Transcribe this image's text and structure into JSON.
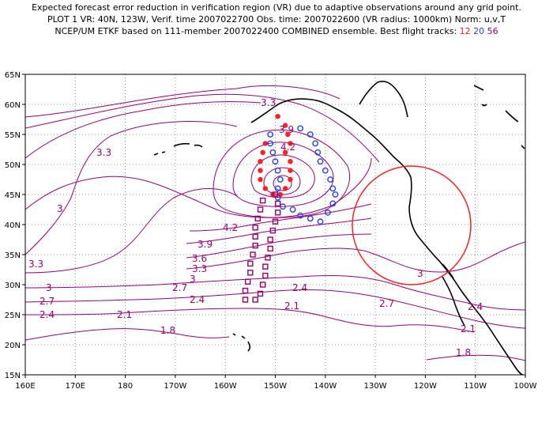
{
  "title": {
    "line1": "Expected forecast error reduction in verification region (VR) due to adaptive observations around any grid point.",
    "line2": "PLOT 1 VR: 40N, 123W, Verif. time 2007022700 Obs. time: 2007022600 (VR radius: 1000km) Norm: u,v,T",
    "line3_prefix": "NCEP/UM ETKF based on 111-member 2007022400 COMBINED ensemble.  Best flight tracks:",
    "track_12": "12",
    "track_20": "20",
    "track_56": "56"
  },
  "colors": {
    "contour": "#99007a",
    "track_12": "#ff2020",
    "track_20": "#2040ff",
    "track_56": "#990066",
    "verification_circle": "#ff2020"
  },
  "axes": {
    "x_ticks": [
      "160E",
      "170E",
      "180",
      "170W",
      "160W",
      "150W",
      "140W",
      "130W",
      "120W",
      "110W",
      "100W"
    ],
    "y_ticks": [
      "65N",
      "60N",
      "55N",
      "50N",
      "45N",
      "40N",
      "35N",
      "30N",
      "25N",
      "20N",
      "15N"
    ],
    "lon_range": [
      160,
      260
    ],
    "lat_range": [
      15,
      65
    ]
  },
  "contour_labels": [
    "3.3",
    "3.9",
    "4.2",
    "3.3",
    "3",
    "4.2",
    "3.9",
    "3.6",
    "3.3",
    "3",
    "3.3",
    "2.7",
    "2.4",
    "3",
    "2.7",
    "2.4",
    "2.1",
    "1.8",
    "2.4",
    "2.1",
    "2.7",
    "3",
    "2.4",
    "2.1",
    "1.8"
  ],
  "verification_region": {
    "lat": 40,
    "lon": -123,
    "radius_km": 1000
  },
  "flight_tracks": {
    "track_12": [
      [
        -149.5,
        58
      ],
      [
        -148,
        56.5
      ],
      [
        -147.5,
        55
      ],
      [
        -147,
        53.5
      ],
      [
        -148,
        52
      ],
      [
        -147,
        50.5
      ],
      [
        -147,
        49
      ],
      [
        -147,
        47.5
      ],
      [
        -148,
        46
      ],
      [
        -149,
        45
      ],
      [
        -150.5,
        45
      ],
      [
        -152,
        46
      ],
      [
        -153,
        47.5
      ],
      [
        -153,
        49
      ],
      [
        -153,
        50.5
      ],
      [
        -152.5,
        52
      ],
      [
        -152,
        53.5
      ]
    ],
    "track_20": [
      [
        -145,
        56
      ],
      [
        -143,
        55
      ],
      [
        -142,
        53.5
      ],
      [
        -141.5,
        52
      ],
      [
        -141,
        50.5
      ],
      [
        -140,
        49
      ],
      [
        -139,
        47.5
      ],
      [
        -138.5,
        46
      ],
      [
        -138,
        45
      ],
      [
        -138.5,
        43.5
      ],
      [
        -139.5,
        42
      ],
      [
        -141,
        40.5
      ],
      [
        -143,
        41
      ],
      [
        -145,
        41.5
      ],
      [
        -146.5,
        42.5
      ],
      [
        -148.5,
        43
      ],
      [
        -149.5,
        44.5
      ],
      [
        -149.5,
        46
      ],
      [
        -149,
        47.5
      ],
      [
        -149.5,
        49
      ],
      [
        -150,
        50.5
      ],
      [
        -150.5,
        52
      ],
      [
        -151,
        53.5
      ],
      [
        -151,
        55
      ]
    ],
    "track_56": [
      [
        -152.5,
        44
      ],
      [
        -153,
        42.5
      ],
      [
        -153.5,
        41
      ],
      [
        -154,
        39.5
      ],
      [
        -154,
        38
      ],
      [
        -154,
        36.5
      ],
      [
        -154.5,
        35
      ],
      [
        -155,
        33.5
      ],
      [
        -155,
        32
      ],
      [
        -155.5,
        30.5
      ],
      [
        -156,
        29
      ],
      [
        -156,
        27.5
      ],
      [
        -150,
        45
      ],
      [
        -149.5,
        43.5
      ],
      [
        -149.5,
        42
      ],
      [
        -150,
        40.5
      ],
      [
        -150.5,
        39
      ],
      [
        -151,
        37.5
      ],
      [
        -151,
        36
      ],
      [
        -151.5,
        34.5
      ],
      [
        -152,
        33
      ],
      [
        -152,
        31.5
      ],
      [
        -152.5,
        30
      ],
      [
        -153,
        28.5
      ],
      [
        -154,
        27.5
      ]
    ]
  }
}
